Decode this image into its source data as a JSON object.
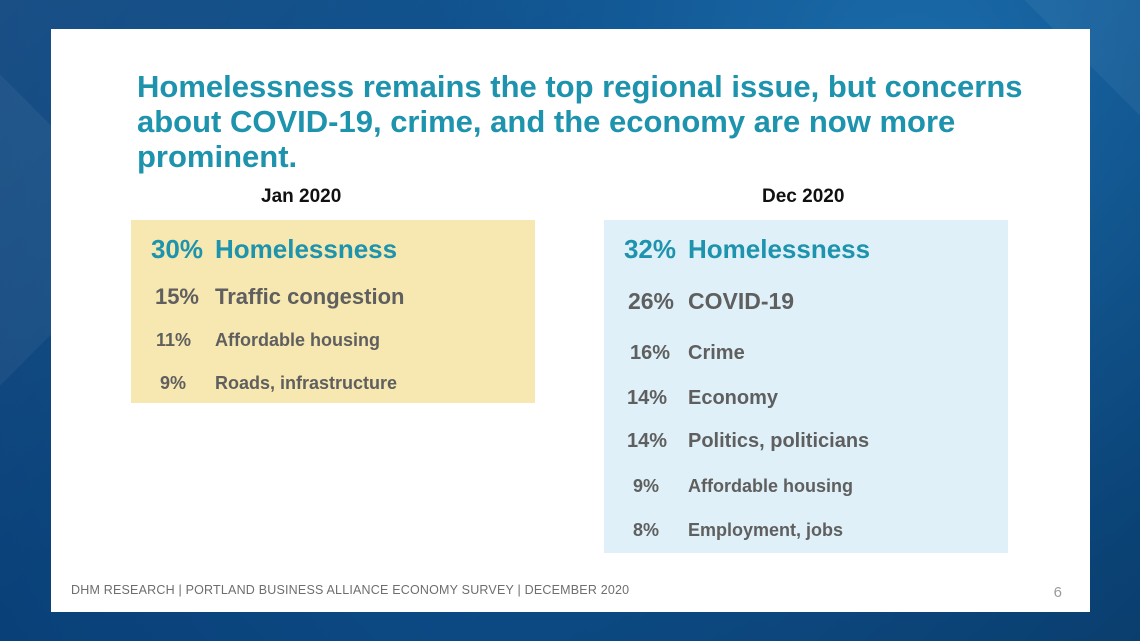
{
  "slide": {
    "title": "Homelessness remains the top regional issue, but concerns about COVID-19, crime, and the economy are now more prominent.",
    "footer": "DHM RESEARCH | PORTLAND BUSINESS ALLIANCE ECONOMY SURVEY | DECEMBER 2020",
    "page_number": "6"
  },
  "colors": {
    "accent": "#1d93ad",
    "jan_panel": "#f7e7b0",
    "dec_panel": "#dff0f8",
    "body_text": "#5f5f5f",
    "background": "#0d4f8b"
  },
  "jan": {
    "heading": "Jan 2020",
    "items": [
      {
        "pct": "30%",
        "label": "Homelessness"
      },
      {
        "pct": "15%",
        "label": "Traffic congestion"
      },
      {
        "pct": "11%",
        "label": "Affordable housing"
      },
      {
        "pct": "9%",
        "label": "Roads, infrastructure"
      }
    ]
  },
  "dec": {
    "heading": "Dec 2020",
    "items": [
      {
        "pct": "32%",
        "label": "Homelessness"
      },
      {
        "pct": "26%",
        "label": "COVID-19"
      },
      {
        "pct": "16%",
        "label": "Crime"
      },
      {
        "pct": "14%",
        "label": "Economy"
      },
      {
        "pct": "14%",
        "label": "Politics, politicians"
      },
      {
        "pct": "9%",
        "label": "Affordable housing"
      },
      {
        "pct": "8%",
        "label": "Employment, jobs"
      }
    ]
  }
}
